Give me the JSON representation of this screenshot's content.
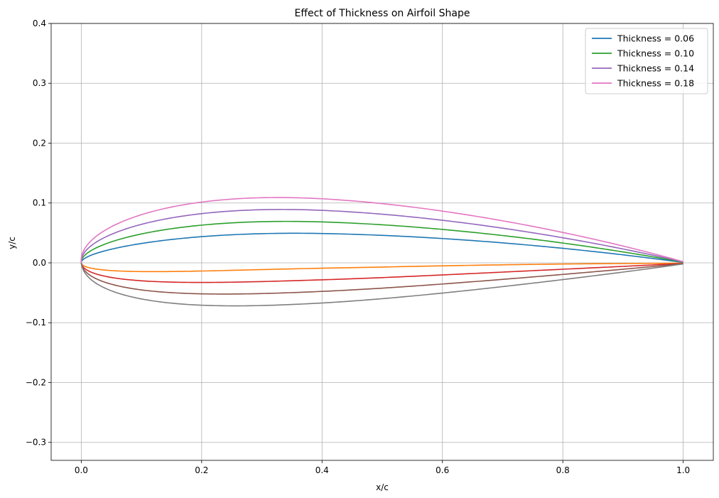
{
  "chart_data": {
    "type": "line",
    "title": "Effect of Thickness on Airfoil Shape",
    "xlabel": "x/c",
    "ylabel": "y/c",
    "xlim": [
      -0.05,
      1.05
    ],
    "ylim": [
      -0.33,
      0.4
    ],
    "grid": true,
    "legend_position": "top-right",
    "xticks": [
      {
        "value": 0.0,
        "label": "0.0"
      },
      {
        "value": 0.2,
        "label": "0.2"
      },
      {
        "value": 0.4,
        "label": "0.4"
      },
      {
        "value": 0.6,
        "label": "0.6"
      },
      {
        "value": 0.8,
        "label": "0.8"
      },
      {
        "value": 1.0,
        "label": "1.0"
      }
    ],
    "yticks": [
      {
        "value": -0.3,
        "label": "−0.3"
      },
      {
        "value": -0.2,
        "label": "−0.2"
      },
      {
        "value": -0.1,
        "label": "−0.1"
      },
      {
        "value": 0.0,
        "label": "0.0"
      },
      {
        "value": 0.1,
        "label": "0.1"
      },
      {
        "value": 0.2,
        "label": "0.2"
      },
      {
        "value": 0.3,
        "label": "0.3"
      },
      {
        "value": 0.4,
        "label": "0.4"
      }
    ],
    "camber_m": 0.02,
    "camber_p": 0.4,
    "series": [
      {
        "name": "Thickness = 0.06",
        "thickness": 0.06,
        "surface": "upper",
        "color": "#1f77b4",
        "legend": true
      },
      {
        "name": "",
        "thickness": 0.06,
        "surface": "lower",
        "color": "#ff7f0e",
        "legend": false
      },
      {
        "name": "Thickness = 0.10",
        "thickness": 0.1,
        "surface": "upper",
        "color": "#2ca02c",
        "legend": true
      },
      {
        "name": "",
        "thickness": 0.1,
        "surface": "lower",
        "color": "#d62728",
        "legend": false
      },
      {
        "name": "Thickness = 0.14",
        "thickness": 0.14,
        "surface": "upper",
        "color": "#9467bd",
        "legend": true
      },
      {
        "name": "",
        "thickness": 0.14,
        "surface": "lower",
        "color": "#8c564b",
        "legend": false
      },
      {
        "name": "Thickness = 0.18",
        "thickness": 0.18,
        "surface": "upper",
        "color": "#e377c2",
        "legend": true
      },
      {
        "name": "",
        "thickness": 0.18,
        "surface": "lower",
        "color": "#7f7f7f",
        "legend": false
      }
    ]
  }
}
